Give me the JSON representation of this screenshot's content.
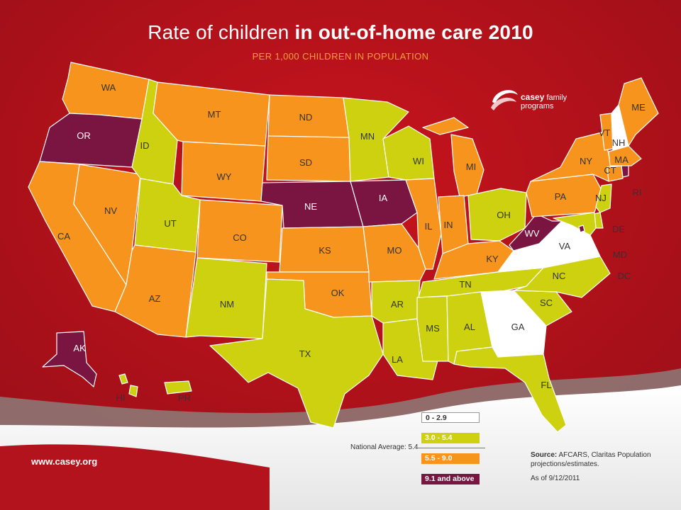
{
  "header": {
    "title_plain": "Rate of children",
    "title_bold": "in out-of-home care 2010",
    "subtitle": "PER 1,000 CHILDREN IN POPULATION"
  },
  "logo": {
    "brand": "casey",
    "rest": "family programs"
  },
  "colors": {
    "background": "#b3131c",
    "cat_0_2_9": "#ffffff",
    "cat_3_0_5_4": "#cdd10f",
    "cat_5_5_9_0": "#f7941d",
    "cat_9_1_up": "#7a1440"
  },
  "legend": {
    "items": [
      {
        "label": "0 - 2.9",
        "color": "#ffffff",
        "text_color": "#333333"
      },
      {
        "label": "3.0 - 5.4",
        "color": "#cdd10f",
        "text_color": "#ffffff"
      },
      {
        "label": "5.5 - 9.0",
        "color": "#f7941d",
        "text_color": "#ffffff"
      },
      {
        "label": "9.1 and above",
        "color": "#7a1440",
        "text_color": "#ffffff"
      }
    ],
    "national_average": "National Average: 5.4"
  },
  "source": {
    "label": "Source:",
    "text": "AFCARS, Claritas Population projections/estimates.",
    "as_of": "As of 9/12/2011"
  },
  "footer": {
    "url": "www.casey.org"
  },
  "states": {
    "WA": "5.5 - 9.0",
    "OR": "9.1 and above",
    "CA": "5.5 - 9.0",
    "NV": "5.5 - 9.0",
    "ID": "3.0 - 5.4",
    "MT": "5.5 - 9.0",
    "WY": "5.5 - 9.0",
    "UT": "3.0 - 5.4",
    "AZ": "5.5 - 9.0",
    "CO": "5.5 - 9.0",
    "NM": "3.0 - 5.4",
    "ND": "5.5 - 9.0",
    "SD": "5.5 - 9.0",
    "NE": "9.1 and above",
    "KS": "5.5 - 9.0",
    "OK": "5.5 - 9.0",
    "TX": "3.0 - 5.4",
    "MN": "3.0 - 5.4",
    "IA": "9.1 and above",
    "MO": "5.5 - 9.0",
    "AR": "3.0 - 5.4",
    "LA": "3.0 - 5.4",
    "WI": "3.0 - 5.4",
    "IL": "5.5 - 9.0",
    "MI": "5.5 - 9.0",
    "IN": "5.5 - 9.0",
    "OH": "3.0 - 5.4",
    "KY": "5.5 - 9.0",
    "TN": "3.0 - 5.4",
    "MS": "3.0 - 5.4",
    "AL": "3.0 - 5.4",
    "GA": "0 - 2.9",
    "FL": "3.0 - 5.4",
    "SC": "3.0 - 5.4",
    "NC": "3.0 - 5.4",
    "VA": "0 - 2.9",
    "WV": "9.1 and above",
    "PA": "5.5 - 9.0",
    "NY": "5.5 - 9.0",
    "VT": "5.5 - 9.0",
    "NH": "0 - 2.9",
    "ME": "5.5 - 9.0",
    "MA": "5.5 - 9.0",
    "CT": "5.5 - 9.0",
    "RI": "9.1 and above",
    "NJ": "3.0 - 5.4",
    "DE": "3.0 - 5.4",
    "MD": "3.0 - 5.4",
    "DC": "9.1 and above",
    "AK": "9.1 and above",
    "HI": "3.0 - 5.4",
    "PR": "3.0 - 5.4"
  }
}
